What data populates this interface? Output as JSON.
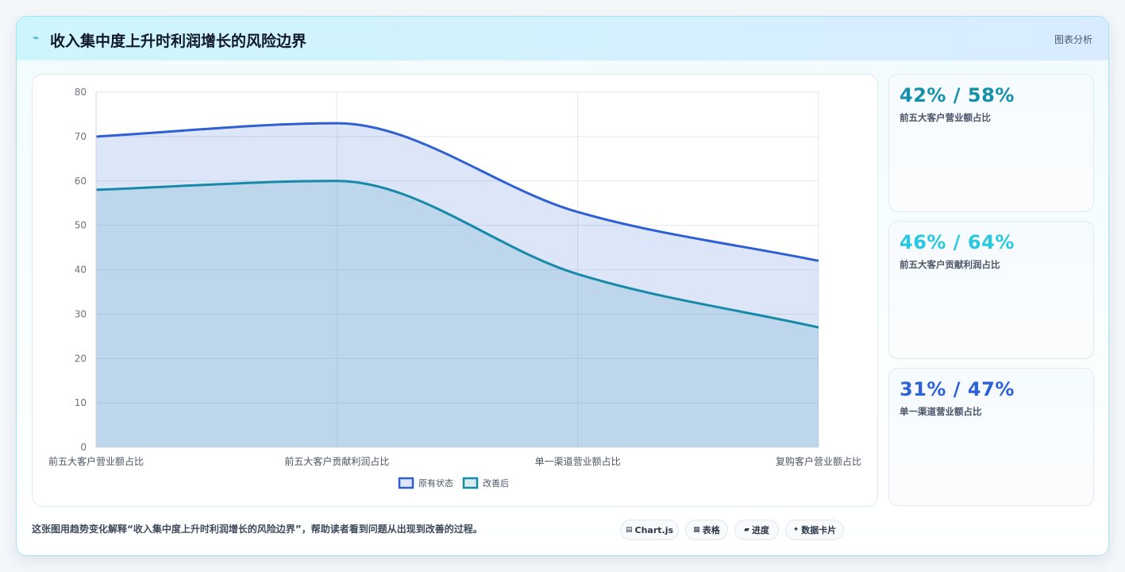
{
  "header": {
    "icon": "chart-icon",
    "title": "收入集中度上升时利润增长的风险边界",
    "tag": "图表分析"
  },
  "chart_data": {
    "type": "area",
    "categories": [
      "前五大客户营业额占比",
      "前五大客户贡献利润占比",
      "单一渠道营业额占比",
      "复购客户营业额占比"
    ],
    "series": [
      {
        "name": "原有状态",
        "values": [
          70,
          73,
          53,
          42
        ],
        "color": "#2e5fd3",
        "fill": "rgba(46,95,211,0.16)"
      },
      {
        "name": "改善后",
        "values": [
          58,
          60,
          39,
          27
        ],
        "color": "#168aa8",
        "fill": "rgba(22,138,168,0.16)"
      }
    ],
    "ylim": [
      0,
      80
    ],
    "yticks": [
      0,
      10,
      20,
      30,
      40,
      50,
      60,
      70,
      80
    ],
    "grid": true,
    "legend": "bottom"
  },
  "stats": [
    {
      "value": "42% / 58%",
      "label": "前五大客户营业额占比",
      "color": "#1590aa"
    },
    {
      "value": "46% / 64%",
      "label": "前五大客户贡献利润占比",
      "color": "#28c8e0"
    },
    {
      "value": "31% / 47%",
      "label": "单一渠道营业额占比",
      "color": "#2e62d8"
    }
  ],
  "caption": "这张图用趋势变化解释“收入集中度上升时利润增长的风险边界”，帮助读者看到问题从出现到改善的过程。",
  "chips": [
    {
      "icon": "chart-icon",
      "label": "Chart.js"
    },
    {
      "icon": "table-icon",
      "label": "表格"
    },
    {
      "icon": "progress-icon",
      "label": "进度"
    },
    {
      "icon": "sparkle-icon",
      "label": "数据卡片"
    }
  ]
}
